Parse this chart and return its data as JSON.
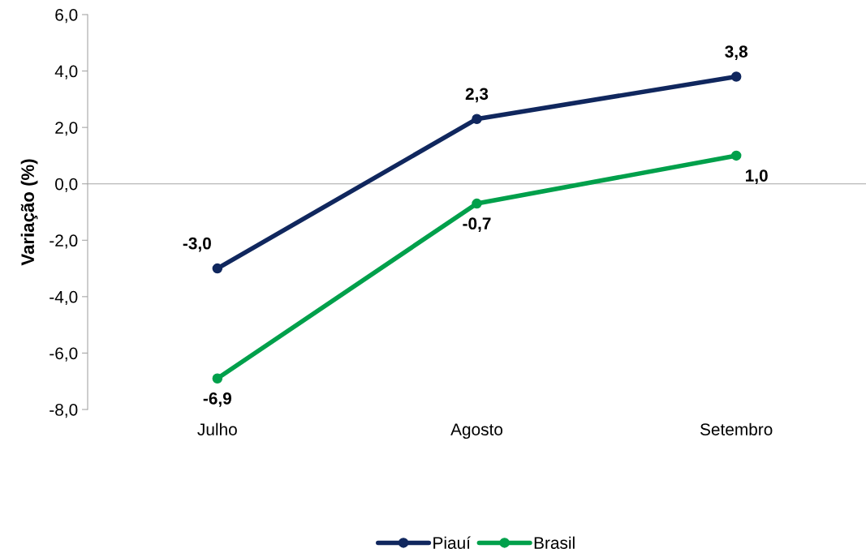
{
  "chart_data": {
    "type": "line",
    "ylabel": "Variação (%)",
    "categories": [
      "Julho",
      "Agosto",
      "Setembro"
    ],
    "series": [
      {
        "name": "Piauí",
        "color": "#10275e",
        "values": [
          -3.0,
          2.3,
          3.8
        ],
        "value_labels": [
          "-3,0",
          "2,3",
          "3,8"
        ]
      },
      {
        "name": "Brasil",
        "color": "#00a04b",
        "values": [
          -6.9,
          -0.7,
          1.0
        ],
        "value_labels": [
          "-6,9",
          "-0,7",
          "1,0"
        ]
      }
    ],
    "ylim": [
      -8,
      6
    ],
    "yticks": [
      {
        "value": -8,
        "label": "-8,0"
      },
      {
        "value": -6,
        "label": "-6,0"
      },
      {
        "value": -4,
        "label": "-4,0"
      },
      {
        "value": -2,
        "label": "-2,0"
      },
      {
        "value": 0,
        "label": "0,0"
      },
      {
        "value": 2,
        "label": "2,0"
      },
      {
        "value": 4,
        "label": "4,0"
      },
      {
        "value": 6,
        "label": "6,0"
      }
    ],
    "legend": "bottom",
    "marker": "circle",
    "line_style": "solid"
  }
}
